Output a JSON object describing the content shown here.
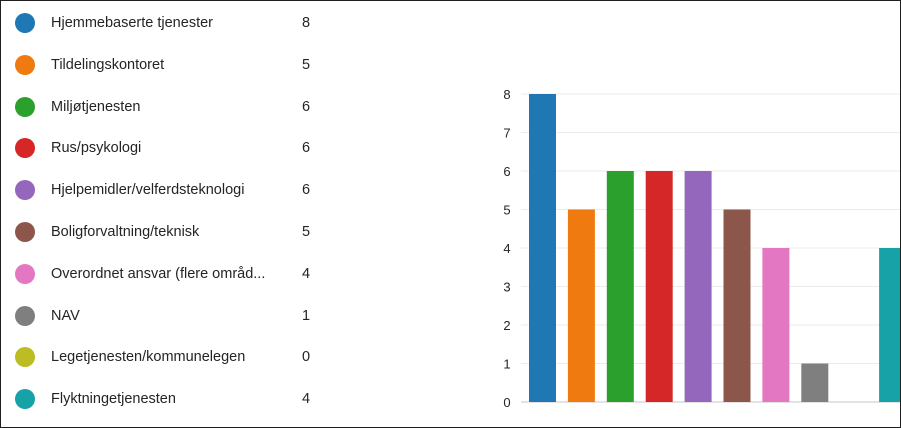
{
  "chart_data": {
    "type": "bar",
    "categories": [
      "Hjemmebaserte tjenester",
      "Tildelingskontoret",
      "Miljøtjenesten",
      "Rus/psykologi",
      "Hjelpemidler/velferdsteknologi",
      "Boligforvaltning/teknisk",
      "Overordnet ansvar (flere områd...",
      "NAV",
      "Legetjenesten/kommunelegen",
      "Flyktningetjenesten"
    ],
    "values": [
      8,
      5,
      6,
      6,
      6,
      5,
      4,
      1,
      0,
      4
    ],
    "colors": [
      "#1f77b4",
      "#ef7b10",
      "#2ca02c",
      "#d62728",
      "#9467bd",
      "#8c564b",
      "#e377c2",
      "#7f7f7f",
      "#bcbd22",
      "#17a2a8"
    ],
    "ylim": [
      0,
      8
    ],
    "yticks": [
      "0",
      "1",
      "2",
      "3",
      "4",
      "5",
      "6",
      "7",
      "8"
    ],
    "grid": true,
    "legend_position": "left"
  }
}
